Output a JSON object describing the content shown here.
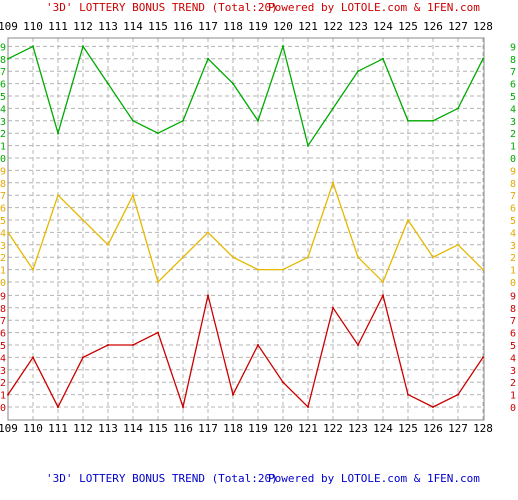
{
  "title": {
    "part1": "'3D' LOTTERY BONUS TREND (Total:20)",
    "part2": "Powered by LOTOLE.com & 1FEN.com"
  },
  "footer": {
    "part1": "'3D' LOTTERY BONUS TREND (Total:20)",
    "part2": "Powered by LOTOLE.com & 1FEN.com"
  },
  "colors": {
    "title_part1": "#cc0000",
    "title_part2": "#cc0000",
    "footer_part1": "#0000cc",
    "footer_part2": "#0000cc",
    "grid": "#b4b4b4",
    "border": "#888888"
  },
  "chart_data": {
    "type": "line",
    "x": [
      "109",
      "110",
      "111",
      "112",
      "113",
      "114",
      "115",
      "116",
      "117",
      "118",
      "119",
      "120",
      "121",
      "122",
      "123",
      "124",
      "125",
      "126",
      "127",
      "128"
    ],
    "ylim": [
      0,
      9
    ],
    "y_ticks": [
      "0",
      "1",
      "2",
      "3",
      "4",
      "5",
      "6",
      "7",
      "8",
      "9"
    ],
    "grid": true,
    "panels": [
      {
        "color": "#00aa00",
        "values": [
          8,
          9,
          2,
          9,
          6,
          3,
          2,
          3,
          8,
          6,
          3,
          9,
          1,
          4,
          7,
          8,
          3,
          3,
          4,
          8
        ]
      },
      {
        "color": "#e6b800",
        "values": [
          4,
          1,
          7,
          5,
          3,
          7,
          0,
          2,
          4,
          2,
          1,
          1,
          2,
          8,
          2,
          0,
          5,
          2,
          3,
          1
        ]
      },
      {
        "color": "#cc0000",
        "values": [
          1,
          4,
          0,
          4,
          5,
          5,
          6,
          0,
          9,
          1,
          5,
          2,
          0,
          8,
          5,
          9,
          1,
          0,
          1,
          4
        ]
      }
    ]
  }
}
